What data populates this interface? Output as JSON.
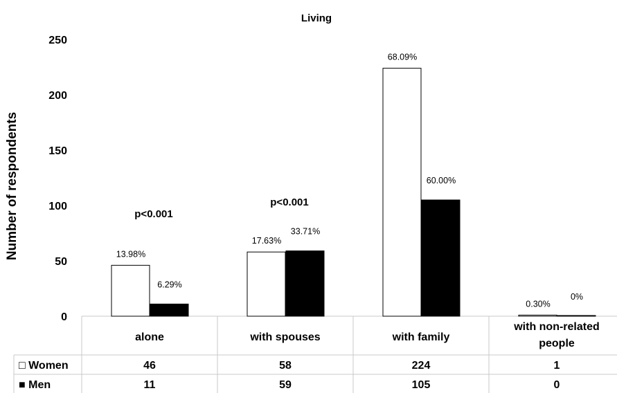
{
  "chart_data": {
    "type": "bar",
    "title": "Living",
    "ylabel": "Number of respondents",
    "xlabel": "",
    "ylim": [
      0,
      250
    ],
    "yticks": [
      "0",
      "50",
      "100",
      "150",
      "200",
      "250"
    ],
    "grid": false,
    "legend": "data-table-left",
    "categories": [
      [
        "alone"
      ],
      [
        "with spouses"
      ],
      [
        "with family"
      ],
      [
        "with non-related",
        "people"
      ]
    ],
    "series": [
      {
        "name": "Women",
        "legend_label": "□ Women",
        "color": "#ffffff",
        "values": [
          46,
          58,
          224,
          1
        ],
        "value_labels": [
          "46",
          "58",
          "224",
          "1"
        ],
        "pct_labels": [
          "13.98%",
          "17.63%",
          "68.09%",
          "0.30%"
        ]
      },
      {
        "name": "Men",
        "legend_label": "■ Men",
        "color": "#000000",
        "values": [
          11,
          59,
          105,
          0
        ],
        "value_labels": [
          "11",
          "59",
          "105",
          "0"
        ],
        "pct_labels": [
          "6.29%",
          "33.71%",
          "60.00%",
          "0%"
        ]
      }
    ],
    "annotations": [
      {
        "text": "p<0.001",
        "category": 0
      },
      {
        "text": "p<0.001",
        "category": 1
      }
    ]
  }
}
